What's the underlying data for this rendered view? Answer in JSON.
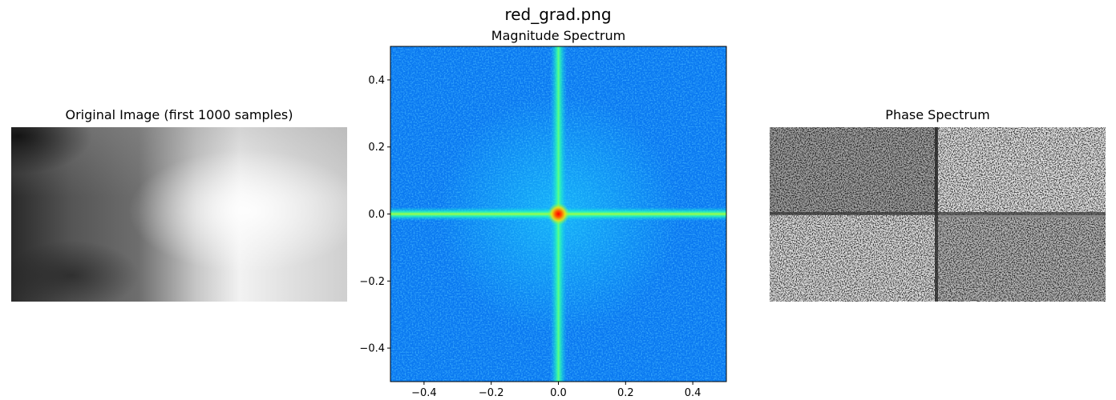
{
  "figure": {
    "suptitle": "red_grad.png"
  },
  "panels": {
    "original": {
      "title": "Original Image (first 1000 samples)"
    },
    "magnitude": {
      "title": "Magnitude Spectrum"
    },
    "phase": {
      "title": "Phase Spectrum"
    }
  },
  "colors": {
    "background": "#00b4ff",
    "cross": "#30ff9a",
    "center": "#ff0000",
    "axis": "#000000"
  },
  "chart_data": [
    {
      "type": "heatmap",
      "title": "Original Image (first 1000 samples)",
      "colormap": "gray",
      "axes_visible": false
    },
    {
      "type": "heatmap",
      "title": "Magnitude Spectrum",
      "colormap": "jet",
      "xlim": [
        -0.5,
        0.5
      ],
      "ylim": [
        -0.5,
        0.5
      ],
      "xticks": [
        -0.4,
        -0.2,
        0.0,
        0.2,
        0.4
      ],
      "yticks": [
        -0.4,
        -0.2,
        0.0,
        0.2,
        0.4
      ],
      "xtick_labels": [
        "−0.4",
        "−0.2",
        "0.0",
        "0.2",
        "0.4"
      ],
      "ytick_labels": [
        "−0.4",
        "−0.2",
        "0.0",
        "0.2",
        "0.4"
      ],
      "peak": {
        "x": 0.0,
        "y": 0.0
      }
    },
    {
      "type": "heatmap",
      "title": "Phase Spectrum",
      "colormap": "gray",
      "axes_visible": false
    }
  ]
}
